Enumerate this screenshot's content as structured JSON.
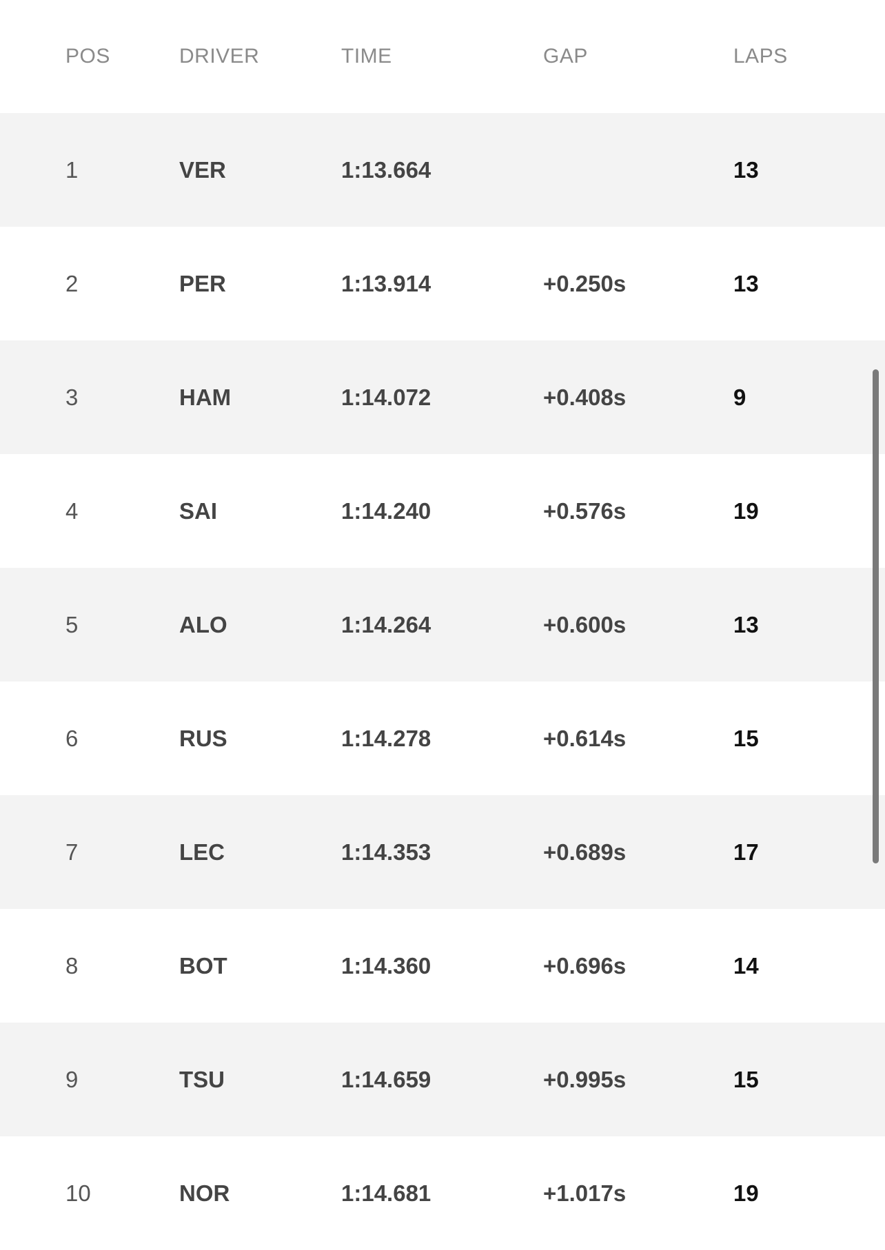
{
  "headers": {
    "pos": "POS",
    "driver": "DRIVER",
    "time": "TIME",
    "gap": "GAP",
    "laps": "LAPS"
  },
  "rows": [
    {
      "pos": "1",
      "driver": "VER",
      "time": "1:13.664",
      "gap": "",
      "laps": "13"
    },
    {
      "pos": "2",
      "driver": "PER",
      "time": "1:13.914",
      "gap": "+0.250s",
      "laps": "13"
    },
    {
      "pos": "3",
      "driver": "HAM",
      "time": "1:14.072",
      "gap": "+0.408s",
      "laps": "9"
    },
    {
      "pos": "4",
      "driver": "SAI",
      "time": "1:14.240",
      "gap": "+0.576s",
      "laps": "19"
    },
    {
      "pos": "5",
      "driver": "ALO",
      "time": "1:14.264",
      "gap": "+0.600s",
      "laps": "13"
    },
    {
      "pos": "6",
      "driver": "RUS",
      "time": "1:14.278",
      "gap": "+0.614s",
      "laps": "15"
    },
    {
      "pos": "7",
      "driver": "LEC",
      "time": "1:14.353",
      "gap": "+0.689s",
      "laps": "17"
    },
    {
      "pos": "8",
      "driver": "BOT",
      "time": "1:14.360",
      "gap": "+0.696s",
      "laps": "14"
    },
    {
      "pos": "9",
      "driver": "TSU",
      "time": "1:14.659",
      "gap": "+0.995s",
      "laps": "15"
    },
    {
      "pos": "10",
      "driver": "NOR",
      "time": "1:14.681",
      "gap": "+1.017s",
      "laps": "19"
    }
  ],
  "colors": {
    "alt_row": "#f3f3f3",
    "header_text": "#8a8a8a",
    "scrollbar": "#7a7a7a"
  }
}
